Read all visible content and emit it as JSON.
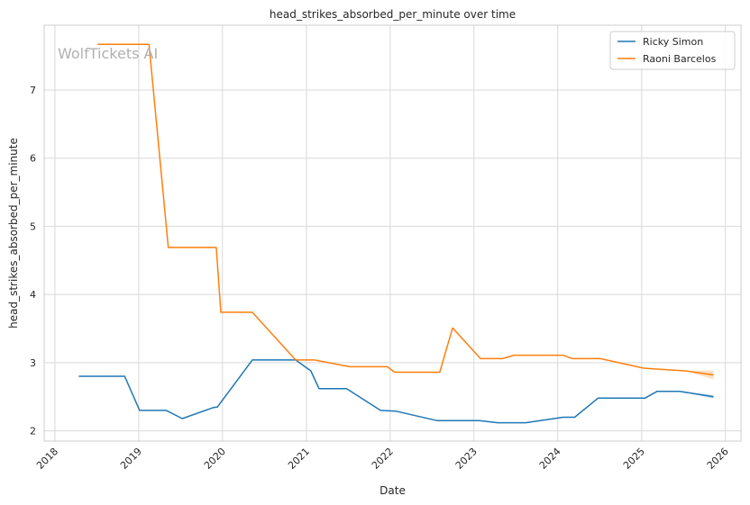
{
  "chart_data": {
    "type": "line",
    "title": "head_strikes_absorbed_per_minute over time",
    "xlabel": "Date",
    "ylabel": "head_strikes_absorbed_per_minute",
    "watermark": "WolfTickets AI",
    "x_ticks": [
      "2018",
      "2019",
      "2020",
      "2021",
      "2022",
      "2023",
      "2024",
      "2025",
      "2026"
    ],
    "y_ticks": [
      2,
      3,
      4,
      5,
      6,
      7
    ],
    "xlim": [
      "2017-11-15",
      "2026-03-10"
    ],
    "ylim": [
      1.85,
      7.95
    ],
    "grid": true,
    "legend_position": "top-right",
    "series": [
      {
        "name": "Ricky Simon",
        "color": "#1f77b4",
        "points": [
          [
            "2018-04-15",
            2.8
          ],
          [
            "2018-11-01",
            2.8
          ],
          [
            "2019-01-05",
            2.3
          ],
          [
            "2019-05-01",
            2.3
          ],
          [
            "2019-07-10",
            2.18
          ],
          [
            "2019-11-20",
            2.34
          ],
          [
            "2019-12-10",
            2.35
          ],
          [
            "2020-05-10",
            3.04
          ],
          [
            "2020-11-15",
            3.04
          ],
          [
            "2021-01-20",
            2.88
          ],
          [
            "2021-02-25",
            2.62
          ],
          [
            "2021-06-25",
            2.62
          ],
          [
            "2021-11-20",
            2.3
          ],
          [
            "2022-01-25",
            2.29
          ],
          [
            "2022-07-25",
            2.15
          ],
          [
            "2023-01-25",
            2.15
          ],
          [
            "2023-04-15",
            2.12
          ],
          [
            "2023-08-15",
            2.12
          ],
          [
            "2024-01-25",
            2.2
          ],
          [
            "2024-03-15",
            2.2
          ],
          [
            "2024-06-25",
            2.48
          ],
          [
            "2025-01-15",
            2.48
          ],
          [
            "2025-03-10",
            2.58
          ],
          [
            "2025-06-15",
            2.58
          ],
          [
            "2025-11-10",
            2.5
          ]
        ]
      },
      {
        "name": "Raoni Barcelos",
        "color": "#ff7f0e",
        "points": [
          [
            "2018-07-05",
            7.67
          ],
          [
            "2019-02-15",
            7.67
          ],
          [
            "2019-05-10",
            4.69
          ],
          [
            "2019-12-05",
            4.69
          ],
          [
            "2019-12-25",
            3.74
          ],
          [
            "2020-05-10",
            3.74
          ],
          [
            "2020-11-15",
            3.04
          ],
          [
            "2021-02-05",
            3.04
          ],
          [
            "2021-07-10",
            2.94
          ],
          [
            "2021-12-20",
            2.94
          ],
          [
            "2022-01-20",
            2.86
          ],
          [
            "2022-08-05",
            2.86
          ],
          [
            "2022-09-30",
            3.51
          ],
          [
            "2023-01-30",
            3.06
          ],
          [
            "2023-05-05",
            3.06
          ],
          [
            "2023-06-25",
            3.11
          ],
          [
            "2024-01-25",
            3.11
          ],
          [
            "2024-03-05",
            3.06
          ],
          [
            "2024-07-05",
            3.06
          ],
          [
            "2025-01-10",
            2.92
          ],
          [
            "2025-02-20",
            2.91
          ],
          [
            "2025-07-10",
            2.88
          ],
          [
            "2025-11-10",
            2.82
          ]
        ]
      }
    ]
  }
}
